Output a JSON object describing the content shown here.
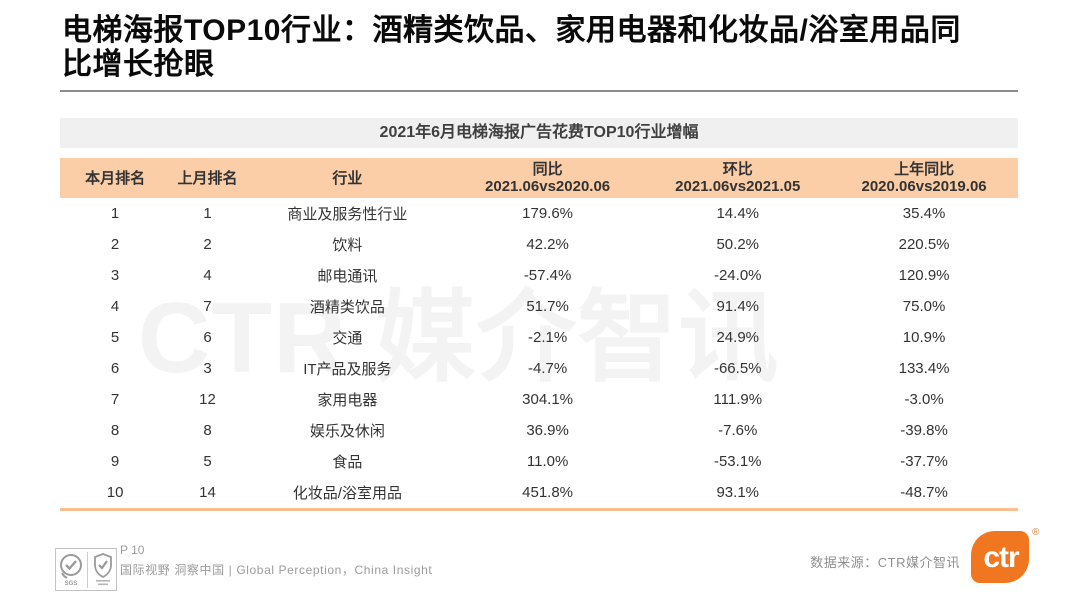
{
  "slide": {
    "title": "电梯海报TOP10行业：酒精类饮品、家用电器和化妆品/浴室用品同比增长抢眼"
  },
  "table": {
    "caption": "2021年6月电梯海报广告花费TOP10行业增幅",
    "columns": [
      {
        "label": "本月排名",
        "sub": ""
      },
      {
        "label": "上月排名",
        "sub": ""
      },
      {
        "label": "行业",
        "sub": ""
      },
      {
        "label": "同比",
        "sub": "2021.06vs2020.06"
      },
      {
        "label": "环比",
        "sub": "2021.06vs2021.05"
      },
      {
        "label": "上年同比",
        "sub": "2020.06vs2019.06"
      }
    ],
    "rows": [
      [
        "1",
        "1",
        "商业及服务性行业",
        "179.6%",
        "14.4%",
        "35.4%"
      ],
      [
        "2",
        "2",
        "饮料",
        "42.2%",
        "50.2%",
        "220.5%"
      ],
      [
        "3",
        "4",
        "邮电通讯",
        "-57.4%",
        "-24.0%",
        "120.9%"
      ],
      [
        "4",
        "7",
        "酒精类饮品",
        "51.7%",
        "91.4%",
        "75.0%"
      ],
      [
        "5",
        "6",
        "交通",
        "-2.1%",
        "24.9%",
        "10.9%"
      ],
      [
        "6",
        "3",
        "IT产品及服务",
        "-4.7%",
        "-66.5%",
        "133.4%"
      ],
      [
        "7",
        "12",
        "家用电器",
        "304.1%",
        "111.9%",
        "-3.0%"
      ],
      [
        "8",
        "8",
        "娱乐及休闲",
        "36.9%",
        "-7.6%",
        "-39.8%"
      ],
      [
        "9",
        "5",
        "食品",
        "11.0%",
        "-53.1%",
        "-37.7%"
      ],
      [
        "10",
        "14",
        "化妆品/浴室用品",
        "451.8%",
        "93.1%",
        "-48.7%"
      ]
    ]
  },
  "watermark": "CTR 媒介智讯",
  "footer": {
    "page_number": "P 10",
    "tagline": "国际视野 洞察中国 | Global Perception，China Insight",
    "source": "数据来源：CTR媒介智讯",
    "brand_logo_text": "ctr",
    "registered_mark": "®"
  },
  "colors": {
    "header_bg": "#FBCEA8",
    "caption_bg": "#F0F0F0",
    "bottom_rule": "#FBBE90",
    "brand_orange": "#F0761F",
    "title_rule_gray": "#8C8C8C"
  }
}
